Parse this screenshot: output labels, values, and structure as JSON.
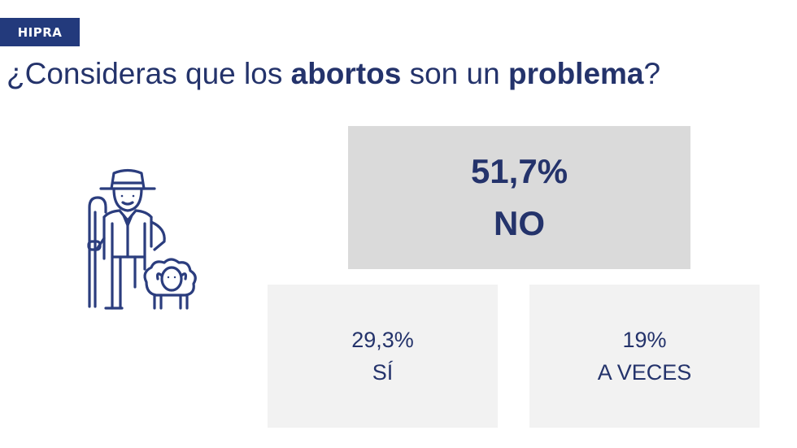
{
  "brand": {
    "logo_text": "HIPRA"
  },
  "title": {
    "part1": "¿Consideras que los ",
    "bold1": "abortos",
    "part2": " son un ",
    "bold2": "problema",
    "part3": "?"
  },
  "results": {
    "no": {
      "percent": "51,7%",
      "label": "NO"
    },
    "si": {
      "percent": "29,3%",
      "label": "SÍ"
    },
    "a_veces": {
      "percent": "19%",
      "label": "A VECES"
    }
  },
  "icons": {
    "illustration": "farmer-with-sheep-icon"
  },
  "colors": {
    "brand": "#233a7c",
    "text": "#24336b",
    "highlight_box": "#dadada",
    "box": "#f2f2f2"
  }
}
